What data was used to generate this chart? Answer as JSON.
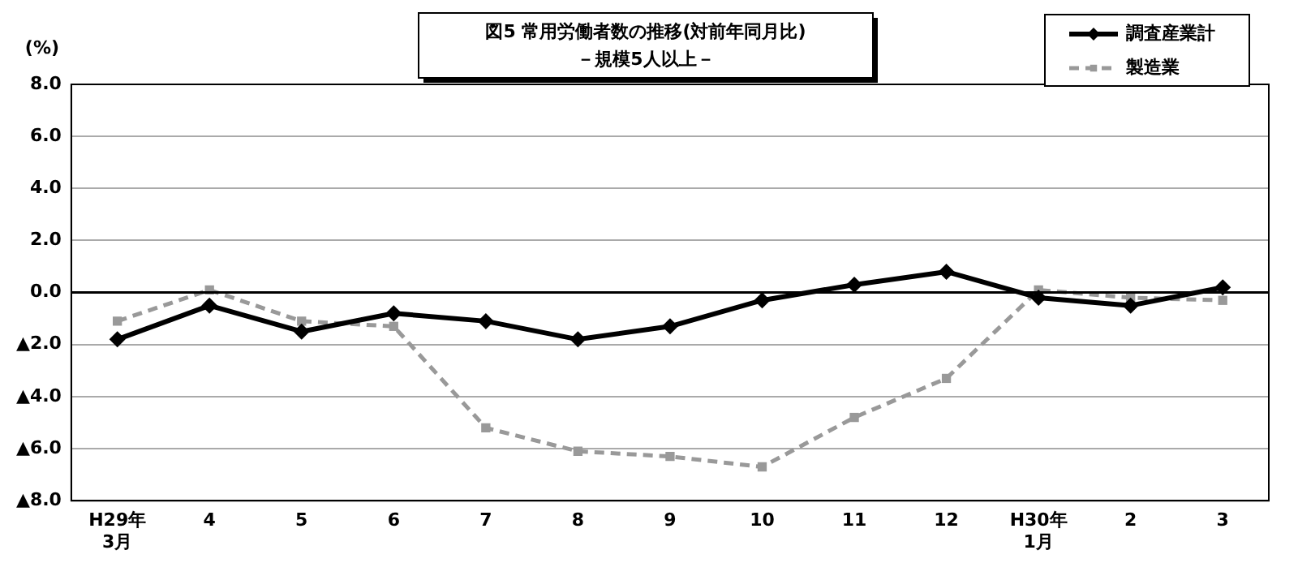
{
  "chart_data": {
    "type": "line",
    "title": "図5 常用労働者数の推移(対前年同月比)",
    "subtitle": "－規模5人以上－",
    "ylabel": "(%)",
    "categories": [
      "H29年\n3月",
      "4",
      "5",
      "6",
      "7",
      "8",
      "9",
      "10",
      "11",
      "12",
      "H30年\n1月",
      "2",
      "3"
    ],
    "series": [
      {
        "name": "調査産業計",
        "color": "#000000",
        "marker": "diamond",
        "line_style": "solid",
        "values": [
          -1.8,
          -0.5,
          -1.5,
          -0.8,
          -1.1,
          -1.8,
          -1.3,
          -0.3,
          0.3,
          0.8,
          -0.2,
          -0.5,
          0.2
        ]
      },
      {
        "name": "製造業",
        "color": "#999999",
        "marker": "square",
        "line_style": "dashed",
        "values": [
          -1.1,
          0.1,
          -1.1,
          -1.3,
          -5.2,
          -6.1,
          -6.3,
          -6.7,
          -4.8,
          -3.3,
          0.1,
          -0.2,
          -0.3
        ]
      }
    ],
    "ylim": [
      -8,
      8
    ],
    "yticks": [
      {
        "value": -8,
        "label": "▲8.0"
      },
      {
        "value": -6,
        "label": "▲6.0"
      },
      {
        "value": -4,
        "label": "▲4.0"
      },
      {
        "value": -2,
        "label": "▲2.0"
      },
      {
        "value": 0,
        "label": "0.0"
      },
      {
        "value": 2,
        "label": "2.0"
      },
      {
        "value": 4,
        "label": "4.0"
      },
      {
        "value": 6,
        "label": "6.0"
      },
      {
        "value": 8,
        "label": "8.0"
      }
    ],
    "ref_lines": [
      {
        "axis": "y",
        "value": 0,
        "color": "#000000"
      }
    ],
    "grid": "y",
    "legend": "top right"
  }
}
